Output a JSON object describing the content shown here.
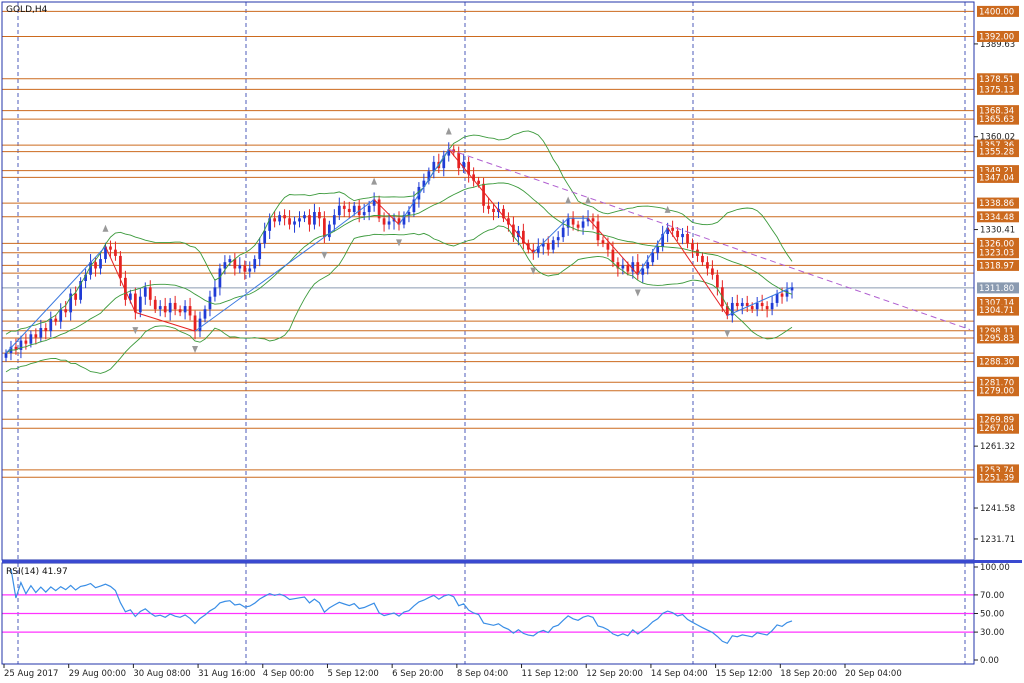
{
  "symbol": "GOLD,H4",
  "colors": {
    "frame": "#2233aa",
    "level_line": "#cc6a1e",
    "level_tag": "#cc6a1e",
    "bull": "#1f3bd6",
    "bear": "#e52222",
    "bollinger": "#3c9a3c",
    "zigzag_up": "#3a78e0",
    "zigzag_down": "#e52222",
    "trendline": "#b05fd0",
    "fractal": "#999999",
    "rsi_line": "#3a8ee6",
    "rsi_level": "#ff33ff",
    "current_price_line": "#8a9ab0",
    "separator": "#3a4ad0"
  },
  "chart_data": [
    {
      "type": "candlestick",
      "title": "GOLD,H4",
      "ylim": [
        1225.0,
        1403.0
      ],
      "price_axis_ticks": [
        "1400.00",
        "1392.00",
        "1389.63",
        "1378.51",
        "1375.13",
        "1368.34",
        "1365.63",
        "1360.02",
        "1357.36",
        "1355.28",
        "1349.21",
        "1347.04",
        "1338.86",
        "1334.48",
        "1330.41",
        "1326.00",
        "1323.03",
        "1318.97",
        "1311.80",
        "1307.14",
        "1304.71",
        "1298.11",
        "1295.83",
        "1288.30",
        "1281.70",
        "1279.00",
        "1269.89",
        "1267.04",
        "1261.32",
        "1253.74",
        "1251.39",
        "1241.58",
        "1231.71"
      ],
      "horizontal_levels": [
        1400.0,
        1392.0,
        1378.51,
        1375.13,
        1368.34,
        1365.63,
        1357.36,
        1355.28,
        1349.21,
        1347.04,
        1338.86,
        1334.48,
        1326.0,
        1323.03,
        1318.97,
        1316.5,
        1304.71,
        1301.2,
        1298.11,
        1295.83,
        1291.0,
        1288.3,
        1281.7,
        1279.0,
        1269.89,
        1267.04,
        1253.74,
        1251.39
      ],
      "level_tags": [
        "1400.00",
        "1392.00",
        "1378.51",
        "1375.13",
        "1368.34",
        "1365.63",
        "1357.36",
        "1355.28",
        "1349.21",
        "1347.04",
        "1338.86",
        "1334.48",
        "1326.00",
        "1323.03",
        "1318.97",
        "1311.80",
        "1307.14",
        "1304.71",
        "1298.11",
        "1295.83",
        "1288.30",
        "1281.70",
        "1279.00",
        "1269.89",
        "1267.04",
        "1253.74",
        "1251.39"
      ],
      "current_price": 1311.8,
      "time_labels": [
        "25 Aug 2017",
        "29 Aug 00:00",
        "30 Aug 08:00",
        "31 Aug 16:00",
        "4 Sep 00:00",
        "5 Sep 12:00",
        "6 Sep 20:00",
        "8 Sep 04:00",
        "11 Sep 12:00",
        "12 Sep 20:00",
        "14 Sep 04:00",
        "15 Sep 12:00",
        "18 Sep 20:00",
        "20 Sep 04:00"
      ],
      "closes": [
        1291,
        1293,
        1292,
        1295,
        1294,
        1297,
        1296,
        1299,
        1298,
        1302,
        1301,
        1305,
        1304,
        1310,
        1308,
        1314,
        1316,
        1320,
        1318,
        1321,
        1325,
        1324,
        1322,
        1315,
        1308,
        1310,
        1304,
        1309,
        1312,
        1308,
        1305,
        1306,
        1304,
        1307,
        1305,
        1304,
        1306,
        1303,
        1298,
        1302,
        1305,
        1309,
        1312,
        1318,
        1320,
        1321,
        1318,
        1319,
        1317,
        1318,
        1321,
        1326,
        1330,
        1334,
        1333,
        1335,
        1334,
        1332,
        1333,
        1334,
        1335,
        1332,
        1336,
        1334,
        1328,
        1332,
        1335,
        1338,
        1337,
        1336,
        1338,
        1335,
        1336,
        1338,
        1340,
        1334,
        1332,
        1333,
        1334,
        1332,
        1335,
        1336,
        1340,
        1344,
        1346,
        1349,
        1352,
        1350,
        1354,
        1356,
        1355,
        1350,
        1352,
        1348,
        1346,
        1345,
        1338,
        1337,
        1336,
        1337,
        1334,
        1332,
        1328,
        1330,
        1326,
        1324,
        1323,
        1325,
        1326,
        1324,
        1327,
        1328,
        1331,
        1334,
        1332,
        1331,
        1333,
        1334,
        1333,
        1327,
        1326,
        1324,
        1320,
        1318,
        1319,
        1317,
        1320,
        1316,
        1318,
        1320,
        1323,
        1325,
        1329,
        1331,
        1330,
        1328,
        1329,
        1326,
        1324,
        1322,
        1320,
        1318,
        1316,
        1312,
        1306,
        1303,
        1307,
        1306,
        1307,
        1306,
        1305,
        1307,
        1306,
        1305,
        1307,
        1310,
        1309,
        1311,
        1312
      ],
      "rsi": {
        "label": "RSI(14) 41.97",
        "period": 14,
        "value": 41.97,
        "ylim": [
          0,
          100
        ],
        "ticks": [
          "100.00",
          "70.00",
          "50.00",
          "30.00",
          "0.00"
        ],
        "levels": [
          70,
          50,
          30
        ]
      }
    }
  ]
}
